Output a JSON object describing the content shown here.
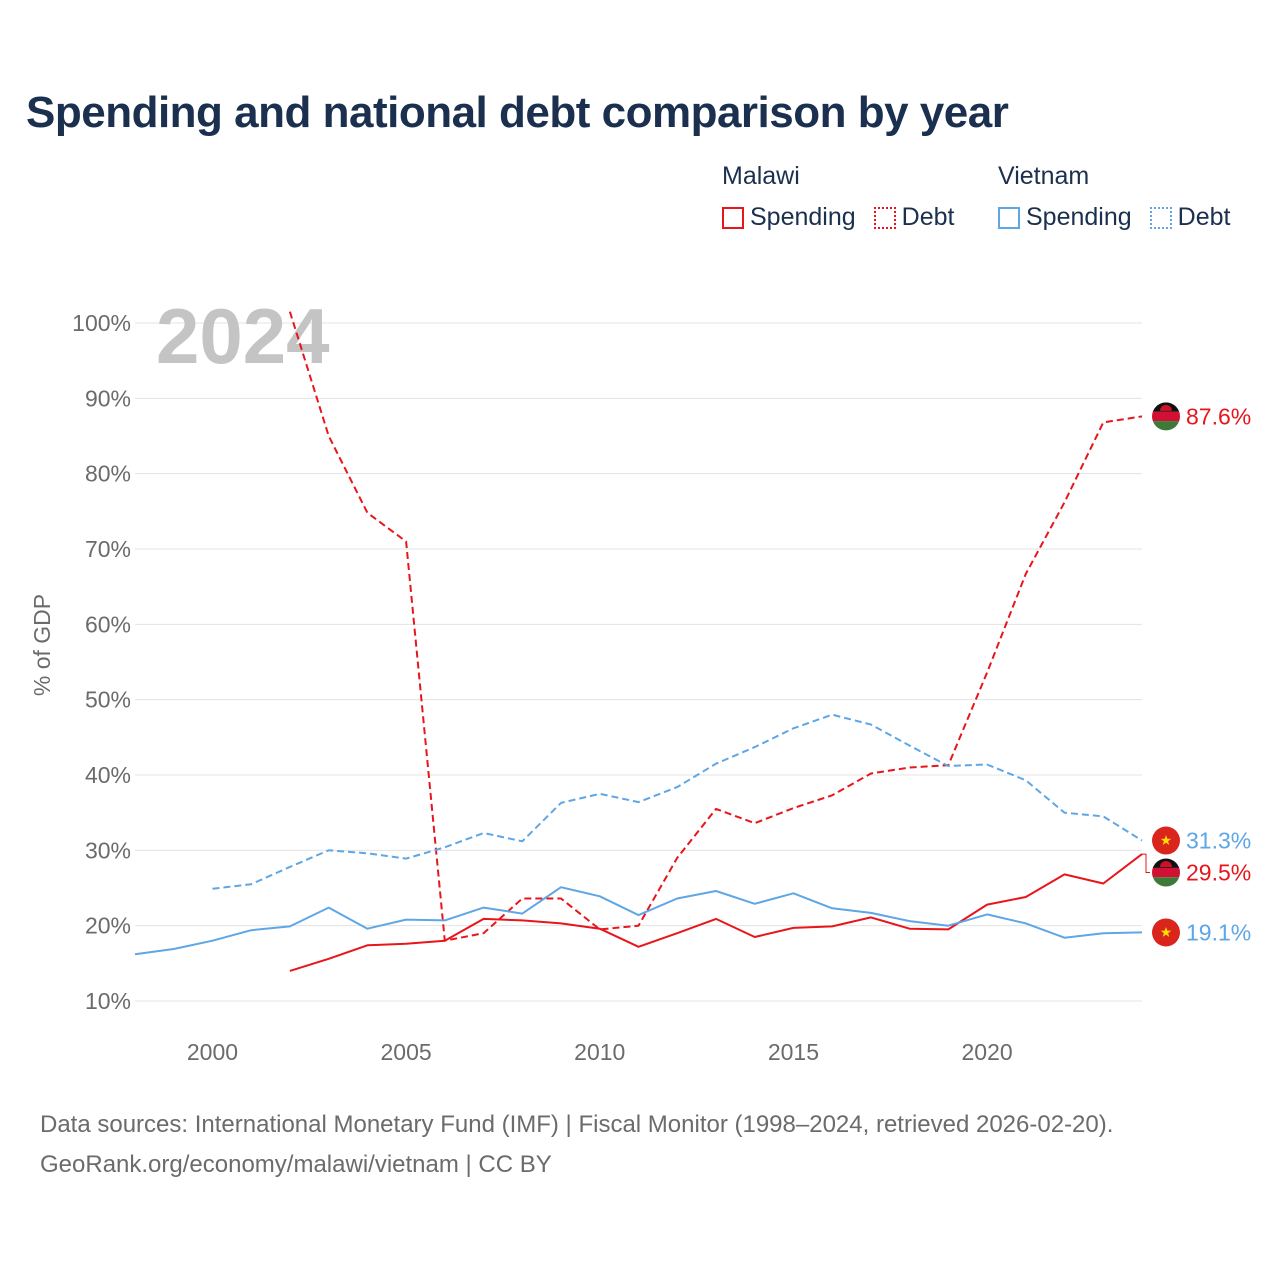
{
  "title": "Spending and national debt comparison by year",
  "legend": {
    "groups": [
      {
        "name": "Malawi",
        "color": "#e8151b",
        "items": [
          "Spending",
          "Debt"
        ]
      },
      {
        "name": "Vietnam",
        "color": "#5ea6e5",
        "items": [
          "Spending",
          "Debt"
        ]
      }
    ]
  },
  "sources": {
    "line1": "Data sources: International Monetary Fund (IMF) | Fiscal Monitor (1998–2024, retrieved 2026-02-20).",
    "line2": "GeoRank.org/economy/malawi/vietnam | CC BY"
  },
  "chart_data": {
    "type": "line",
    "year_watermark": "2024",
    "ylabel": "% of GDP",
    "xlabel": "",
    "xlim": [
      1998,
      2024
    ],
    "ylim": [
      10,
      100
    ],
    "x_ticks": [
      2000,
      2005,
      2010,
      2015,
      2020
    ],
    "y_ticks": [
      10,
      20,
      30,
      40,
      50,
      60,
      70,
      80,
      90,
      100
    ],
    "grid": true,
    "series": [
      {
        "name": "Malawi Spending",
        "country": "Malawi",
        "metric": "Spending",
        "color": "#e8151b",
        "dashed": false,
        "x": [
          2002,
          2003,
          2004,
          2005,
          2006,
          2007,
          2008,
          2009,
          2010,
          2011,
          2012,
          2013,
          2014,
          2015,
          2016,
          2017,
          2018,
          2019,
          2020,
          2021,
          2022,
          2023,
          2024
        ],
        "values": [
          14.0,
          15.6,
          17.4,
          17.6,
          18.0,
          20.9,
          20.7,
          20.3,
          19.6,
          17.2,
          19.0,
          20.9,
          18.5,
          19.7,
          19.9,
          21.1,
          19.6,
          19.5,
          22.8,
          23.8,
          26.8,
          25.6,
          29.5
        ],
        "end_label": "29.5%"
      },
      {
        "name": "Malawi Debt",
        "country": "Malawi",
        "metric": "Debt",
        "color": "#e8151b",
        "dashed": true,
        "x": [
          2002,
          2003,
          2004,
          2005,
          2006,
          2007,
          2008,
          2009,
          2010,
          2011,
          2012,
          2013,
          2014,
          2015,
          2016,
          2017,
          2018,
          2019,
          2020,
          2021,
          2022,
          2023,
          2024
        ],
        "values": [
          101.5,
          85.0,
          74.8,
          71.0,
          18.0,
          19.0,
          23.6,
          23.6,
          19.5,
          20.0,
          29.0,
          35.5,
          33.6,
          35.6,
          37.3,
          40.2,
          41.0,
          41.3,
          53.6,
          66.7,
          76.2,
          86.8,
          87.6
        ],
        "end_label": "87.6%"
      },
      {
        "name": "Vietnam Spending",
        "country": "Vietnam",
        "metric": "Spending",
        "color": "#5ea6e5",
        "dashed": false,
        "x": [
          1998,
          1999,
          2000,
          2001,
          2002,
          2003,
          2004,
          2005,
          2006,
          2007,
          2008,
          2009,
          2010,
          2011,
          2012,
          2013,
          2014,
          2015,
          2016,
          2017,
          2018,
          2019,
          2020,
          2021,
          2022,
          2023,
          2024
        ],
        "values": [
          16.2,
          16.9,
          18.0,
          19.4,
          19.9,
          22.4,
          19.6,
          20.8,
          20.7,
          22.4,
          21.6,
          25.1,
          23.9,
          21.4,
          23.6,
          24.6,
          22.9,
          24.3,
          22.3,
          21.7,
          20.6,
          20.0,
          21.5,
          20.3,
          18.4,
          19.0,
          19.1
        ],
        "end_label": "19.1%"
      },
      {
        "name": "Vietnam Debt",
        "country": "Vietnam",
        "metric": "Debt",
        "color": "#5ea6e5",
        "dashed": true,
        "x": [
          2000,
          2001,
          2002,
          2003,
          2004,
          2005,
          2006,
          2007,
          2008,
          2009,
          2010,
          2011,
          2012,
          2013,
          2014,
          2015,
          2016,
          2017,
          2018,
          2019,
          2020,
          2021,
          2022,
          2023,
          2024
        ],
        "values": [
          24.9,
          25.5,
          27.8,
          30.0,
          29.6,
          28.9,
          30.4,
          32.3,
          31.2,
          36.3,
          37.5,
          36.4,
          38.4,
          41.5,
          43.7,
          46.2,
          48.0,
          46.7,
          43.9,
          41.2,
          41.4,
          39.3,
          35.0,
          34.5,
          31.3
        ],
        "end_label": "31.3%"
      }
    ]
  }
}
